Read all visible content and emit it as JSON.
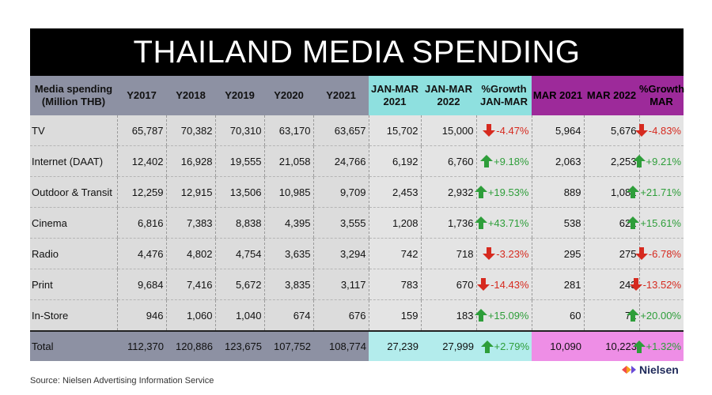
{
  "title": "THAILAND MEDIA SPENDING",
  "source": "Source: Nielsen Advertising Information Service",
  "logo": "Nielsen",
  "colors": {
    "header_gray": "#8d91a3",
    "header_teal": "#8ee0df",
    "header_purple": "#9d2a9a",
    "total_teal": "#b3ecec",
    "total_purple": "#ee8ee6",
    "up_arrow": "#2e9e3a",
    "down_arrow": "#d62a1f"
  },
  "headers": [
    "Media spending (Million THB)",
    "Y2017",
    "Y2018",
    "Y2019",
    "Y2020",
    "Y2021",
    "JAN-MAR 2021",
    "JAN-MAR 2022",
    "%Growth JAN-MAR",
    "MAR 2021",
    "MAR 2022",
    "%Growth MAR"
  ],
  "rows": [
    {
      "media": "TV",
      "y2017": "65,787",
      "y2018": "70,382",
      "y2019": "70,310",
      "y2020": "63,170",
      "y2021": "63,657",
      "q1_2021": "15,702",
      "q1_2022": "15,000",
      "q1_growth": "-4.47%",
      "q1_dir": "down",
      "mar_2021": "5,964",
      "mar_2022": "5,676",
      "mar_growth": "-4.83%",
      "mar_dir": "down"
    },
    {
      "media": "Internet (DAAT)",
      "y2017": "12,402",
      "y2018": "16,928",
      "y2019": "19,555",
      "y2020": "21,058",
      "y2021": "24,766",
      "q1_2021": "6,192",
      "q1_2022": "6,760",
      "q1_growth": "+9.18%",
      "q1_dir": "up",
      "mar_2021": "2,063",
      "mar_2022": "2,253",
      "mar_growth": "+9.21%",
      "mar_dir": "up"
    },
    {
      "media": "Outdoor & Transit",
      "y2017": "12,259",
      "y2018": "12,915",
      "y2019": "13,506",
      "y2020": "10,985",
      "y2021": "9,709",
      "q1_2021": "2,453",
      "q1_2022": "2,932",
      "q1_growth": "+19.53%",
      "q1_dir": "up",
      "mar_2021": "889",
      "mar_2022": "1,082",
      "mar_growth": "+21.71%",
      "mar_dir": "up"
    },
    {
      "media": "Cinema",
      "y2017": "6,816",
      "y2018": "7,383",
      "y2019": "8,838",
      "y2020": "4,395",
      "y2021": "3,555",
      "q1_2021": "1,208",
      "q1_2022": "1,736",
      "q1_growth": "+43.71%",
      "q1_dir": "up",
      "mar_2021": "538",
      "mar_2022": "622",
      "mar_growth": "+15.61%",
      "mar_dir": "up"
    },
    {
      "media": "Radio",
      "y2017": "4,476",
      "y2018": "4,802",
      "y2019": "4,754",
      "y2020": "3,635",
      "y2021": "3,294",
      "q1_2021": "742",
      "q1_2022": "718",
      "q1_growth": "-3.23%",
      "q1_dir": "down",
      "mar_2021": "295",
      "mar_2022": "275",
      "mar_growth": "-6.78%",
      "mar_dir": "down"
    },
    {
      "media": "Print",
      "y2017": "9,684",
      "y2018": "7,416",
      "y2019": "5,672",
      "y2020": "3,835",
      "y2021": "3,117",
      "q1_2021": "783",
      "q1_2022": "670",
      "q1_growth": "-14.43%",
      "q1_dir": "down",
      "mar_2021": "281",
      "mar_2022": "243",
      "mar_growth": "-13.52%",
      "mar_dir": "down"
    },
    {
      "media": "In-Store",
      "y2017": "946",
      "y2018": "1,060",
      "y2019": "1,040",
      "y2020": "674",
      "y2021": "676",
      "q1_2021": "159",
      "q1_2022": "183",
      "q1_growth": "+15.09%",
      "q1_dir": "up",
      "mar_2021": "60",
      "mar_2022": "72",
      "mar_growth": "+20.00%",
      "mar_dir": "up"
    }
  ],
  "total": {
    "media": "Total",
    "y2017": "112,370",
    "y2018": "120,886",
    "y2019": "123,675",
    "y2020": "107,752",
    "y2021": "108,774",
    "q1_2021": "27,239",
    "q1_2022": "27,999",
    "q1_growth": "+2.79%",
    "q1_dir": "up",
    "mar_2021": "10,090",
    "mar_2022": "10,223",
    "mar_growth": "+1.32%",
    "mar_dir": "up"
  },
  "chart_data": {
    "type": "table",
    "title": "THAILAND MEDIA SPENDING",
    "columns": [
      "Media spending (Million THB)",
      "Y2017",
      "Y2018",
      "Y2019",
      "Y2020",
      "Y2021",
      "JAN-MAR 2021",
      "JAN-MAR 2022",
      "%Growth JAN-MAR",
      "MAR 2021",
      "MAR 2022",
      "%Growth MAR"
    ],
    "rows": [
      [
        "TV",
        65787,
        70382,
        70310,
        63170,
        63657,
        15702,
        15000,
        -4.47,
        5964,
        5676,
        -4.83
      ],
      [
        "Internet (DAAT)",
        12402,
        16928,
        19555,
        21058,
        24766,
        6192,
        6760,
        9.18,
        2063,
        2253,
        9.21
      ],
      [
        "Outdoor & Transit",
        12259,
        12915,
        13506,
        10985,
        9709,
        2453,
        2932,
        19.53,
        889,
        1082,
        21.71
      ],
      [
        "Cinema",
        6816,
        7383,
        8838,
        4395,
        3555,
        1208,
        1736,
        43.71,
        538,
        622,
        15.61
      ],
      [
        "Radio",
        4476,
        4802,
        4754,
        3635,
        3294,
        742,
        718,
        -3.23,
        295,
        275,
        -6.78
      ],
      [
        "Print",
        9684,
        7416,
        5672,
        3835,
        3117,
        783,
        670,
        -14.43,
        281,
        243,
        -13.52
      ],
      [
        "In-Store",
        946,
        1060,
        1040,
        674,
        676,
        159,
        183,
        15.09,
        60,
        72,
        20.0
      ],
      [
        "Total",
        112370,
        120886,
        123675,
        107752,
        108774,
        27239,
        27999,
        2.79,
        10090,
        10223,
        1.32
      ]
    ]
  }
}
